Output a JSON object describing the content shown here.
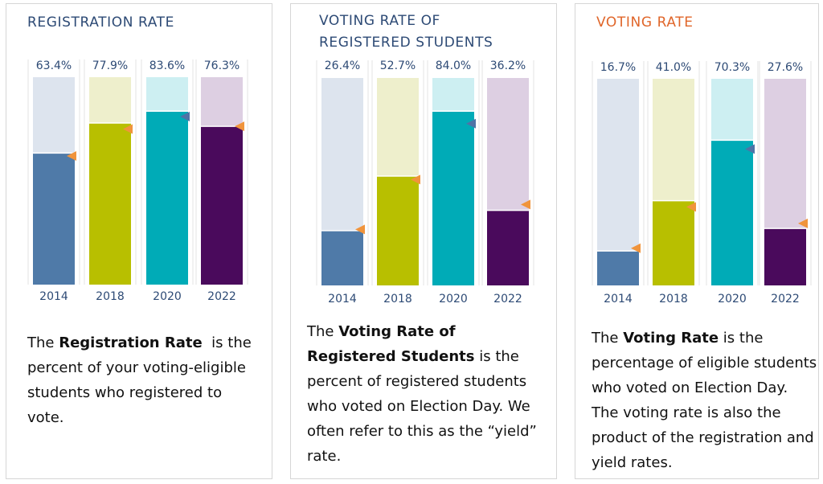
{
  "colors": {
    "title_default": "#2d4a75",
    "title_accent": "#e0662a",
    "label_text": "#2d4a75",
    "marker_orange": "#f0943c",
    "marker_blue": "#4f73a6",
    "bars": [
      {
        "fill": "#4f7aa8",
        "bg": "#dde4ee"
      },
      {
        "fill": "#b8bf00",
        "bg": "#eeefcc"
      },
      {
        "fill": "#00abb7",
        "bg": "#cdeff2"
      },
      {
        "fill": "#4a0a5c",
        "bg": "#ddcfe2"
      }
    ]
  },
  "panels": [
    {
      "title_lines": [
        "REGISTRATION RATE"
      ],
      "title_color": "#2d4a75",
      "desc_runs": [
        {
          "text": "The ",
          "bold": false
        },
        {
          "text": "Registration Rate",
          "bold": true
        },
        {
          "text": "  is the percent of your voting-eligible students who registered to vote.",
          "bold": false
        }
      ]
    },
    {
      "title_lines": [
        "VOTING RATE OF",
        "REGISTERED STUDENTS"
      ],
      "title_color": "#2d4a75",
      "desc_runs": [
        {
          "text": "The ",
          "bold": false
        },
        {
          "text": "Voting Rate of Registered Students",
          "bold": true
        },
        {
          "text": " is the percent of registered students who voted on Election Day. We often refer to this as the “yield” rate.",
          "bold": false
        }
      ]
    },
    {
      "title_lines": [
        "VOTING RATE"
      ],
      "title_color": "#e0662a",
      "desc_runs": [
        {
          "text": "The ",
          "bold": false
        },
        {
          "text": "Voting Rate",
          "bold": true
        },
        {
          "text": " is the percentage of eligible students who voted on Election Day. The voting rate is also the product of the registration and yield rates.",
          "bold": false
        }
      ]
    }
  ],
  "chart_data": [
    {
      "type": "bar",
      "title": "REGISTRATION RATE",
      "categories": [
        "2014",
        "2018",
        "2020",
        "2022"
      ],
      "values": [
        63.4,
        77.9,
        83.6,
        76.3
      ],
      "value_labels": [
        "63.4%",
        "77.9%",
        "83.6%",
        "76.3%"
      ],
      "ylim": [
        0,
        100
      ],
      "grid": false,
      "markers": [
        {
          "value": 62.0,
          "color": "orange"
        },
        {
          "value": 75.0,
          "color": "orange"
        },
        {
          "value": 81.0,
          "color": "blue"
        },
        {
          "value": 76.3,
          "color": "orange"
        }
      ]
    },
    {
      "type": "bar",
      "title": "VOTING RATE OF REGISTERED STUDENTS",
      "categories": [
        "2014",
        "2018",
        "2020",
        "2022"
      ],
      "values": [
        26.4,
        52.7,
        84.0,
        36.2
      ],
      "value_labels": [
        "26.4%",
        "52.7%",
        "84.0%",
        "36.2%"
      ],
      "ylim": [
        0,
        100
      ],
      "grid": false,
      "markers": [
        {
          "value": 27.0,
          "color": "orange"
        },
        {
          "value": 51.0,
          "color": "orange"
        },
        {
          "value": 78.0,
          "color": "blue"
        },
        {
          "value": 39.0,
          "color": "orange"
        }
      ]
    },
    {
      "type": "bar",
      "title": "VOTING RATE",
      "categories": [
        "2014",
        "2018",
        "2020",
        "2022"
      ],
      "values": [
        16.7,
        41.0,
        70.3,
        27.6
      ],
      "value_labels": [
        "16.7%",
        "41.0%",
        "70.3%",
        "27.6%"
      ],
      "ylim": [
        0,
        100
      ],
      "grid": false,
      "markers": [
        {
          "value": 18.0,
          "color": "orange"
        },
        {
          "value": 38.0,
          "color": "orange"
        },
        {
          "value": 66.0,
          "color": "blue"
        },
        {
          "value": 30.0,
          "color": "orange"
        }
      ]
    }
  ]
}
